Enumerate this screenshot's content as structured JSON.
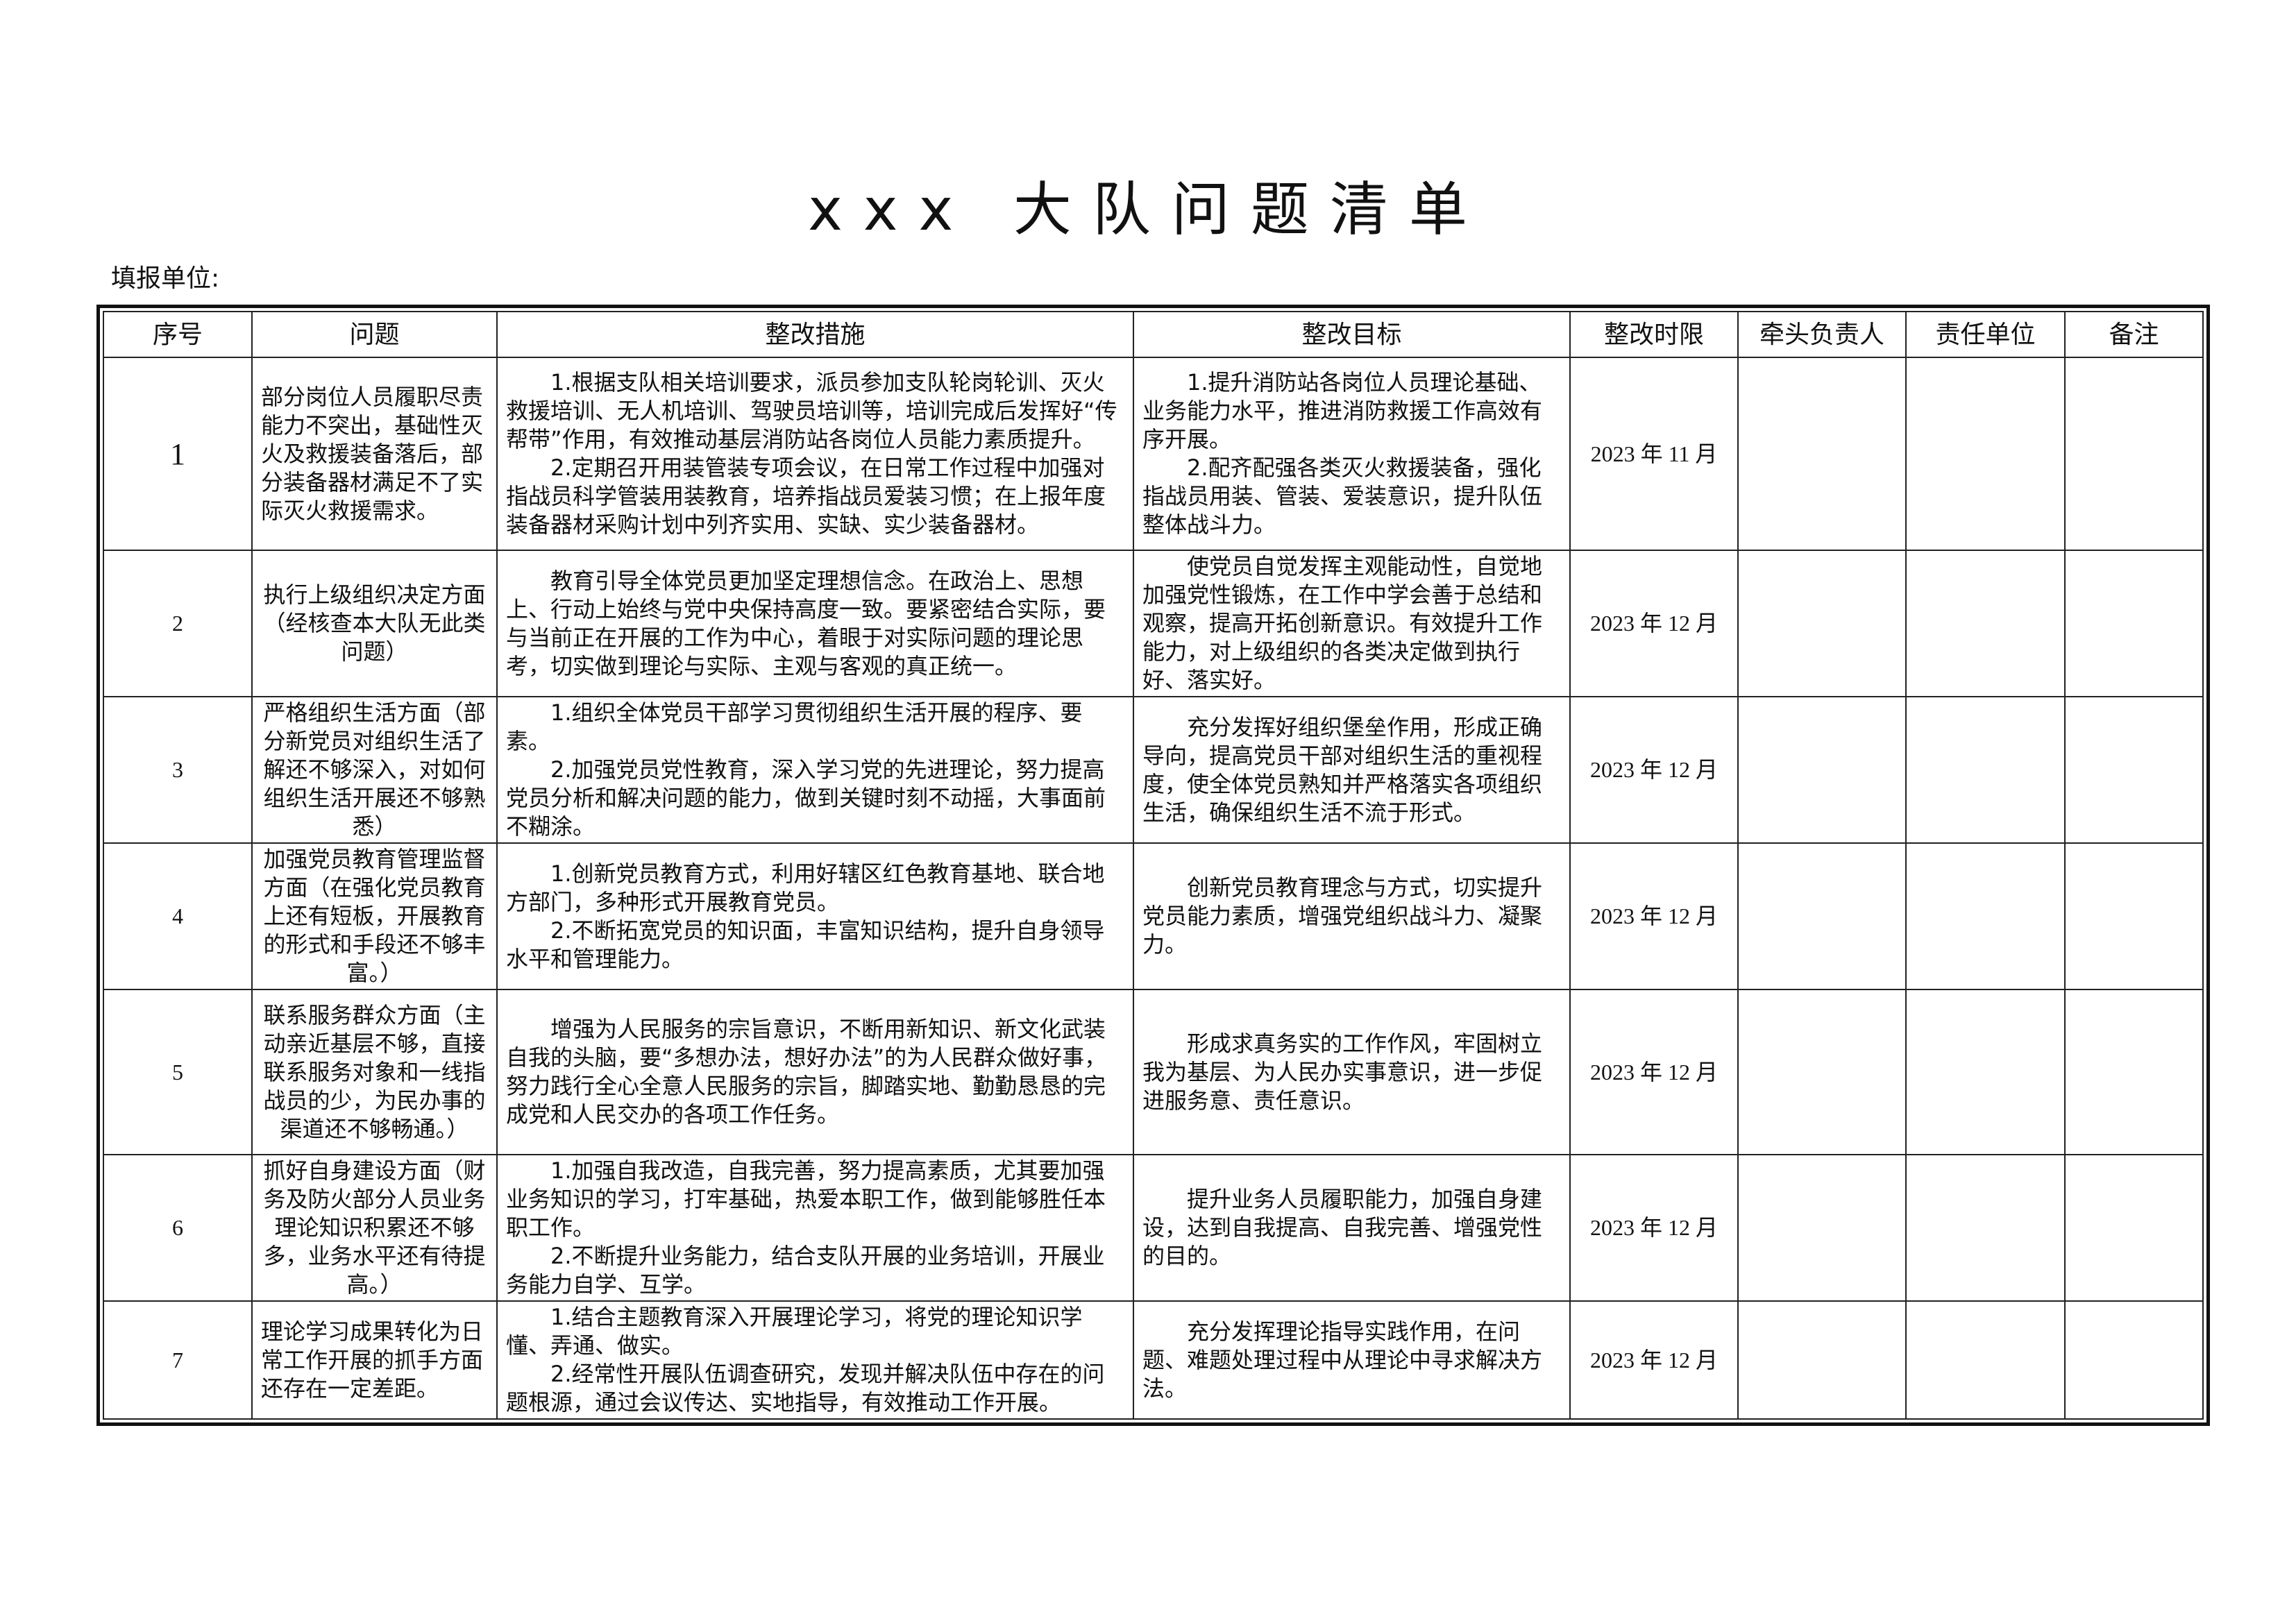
{
  "header": {
    "title": "xxx 大队问题清单",
    "fill_unit": "填报单位:"
  },
  "table": {
    "headers": [
      "序号",
      "问题",
      "整改措施",
      "整改目标",
      "整改时限",
      "牵头负责人",
      "责任单位",
      "备注"
    ],
    "rows": [
      [
        "1",
        "部分岗位人员履职尽责能力不突出，基础性灭火及救援装备落后，部分装备器材满足不了实际灭火救援需求。",
        [
          "1.根据支队相关培训要求，派员参加支队轮岗轮训、灭火救援培训、无人机培训、驾驶员培训等，培训完成后发挥好“传帮带”作用，有效推动基层消防站各岗位人员能力素质提升。",
          "2.定期召开用装管装专项会议，在日常工作过程中加强对指战员科学管装用装教育，培养指战员爱装习惯；在上报年度装备器材采购计划中列齐实用、实缺、实少装备器材。"
        ],
        [
          "1.提升消防站各岗位人员理论基础、业务能力水平，推进消防救援工作高效有序开展。",
          "2.配齐配强各类灭火救援装备，强化指战员用装、管装、爱装意识，提升队伍整体战斗力。"
        ],
        "2023 年 11 月"
      ],
      [
        "2",
        "执行上级组织决定方面（经核查本大队无此类问题）",
        [
          "教育引导全体党员更加坚定理想信念。在政治上、思想上、行动上始终与党中央保持高度一致。要紧密结合实际，要与当前正在开展的工作为中心，着眼于对实际问题的理论思考，切实做到理论与实际、主观与客观的真正统一。"
        ],
        [
          "使党员自觉发挥主观能动性，自觉地加强党性锻炼，在工作中学会善于总结和观察，提高开拓创新意识。有效提升工作能力，对上级组织的各类决定做到执行好、落实好。"
        ],
        "2023 年 12 月"
      ],
      [
        "3",
        "严格组织生活方面（部分新党员对组织生活了解还不够深入，对如何组织生活开展还不够熟悉）",
        [
          "1.组织全体党员干部学习贯彻组织生活开展的程序、要素。",
          "2.加强党员党性教育，深入学习党的先进理论，努力提高党员分析和解决问题的能力，做到关键时刻不动摇，大事面前不糊涂。"
        ],
        [
          "充分发挥好组织堡垒作用，形成正确导向，提高党员干部对组织生活的重视程度，使全体党员熟知并严格落实各项组织生活，确保组织生活不流于形式。"
        ],
        "2023 年 12 月"
      ],
      [
        "4",
        "加强党员教育管理监督方面（在强化党员教育上还有短板，开展教育的形式和手段还不够丰富。）",
        [
          "1.创新党员教育方式，利用好辖区红色教育基地、联合地方部门，多种形式开展教育党员。",
          "2.不断拓宽党员的知识面，丰富知识结构，提升自身领导水平和管理能力。"
        ],
        [
          "创新党员教育理念与方式，切实提升党员能力素质，增强党组织战斗力、凝聚力。"
        ],
        "2023 年 12 月"
      ],
      [
        "5",
        "联系服务群众方面（主动亲近基层不够，直接联系服务对象和一线指战员的少，为民办事的渠道还不够畅通。）",
        [
          "增强为人民服务的宗旨意识，不断用新知识、新文化武装自我的头脑，要“多想办法，想好办法”的为人民群众做好事，努力践行全心全意人民服务的宗旨，脚踏实地、勤勤恳恳的完成党和人民交办的各项工作任务。"
        ],
        [
          "形成求真务实的工作作风，牢固树立我为基层、为人民办实事意识，进一步促进服务意、责任意识。"
        ],
        "2023 年 12 月"
      ],
      [
        "6",
        "抓好自身建设方面（财务及防火部分人员业务理论知识积累还不够多，业务水平还有待提高。）",
        [
          "1.加强自我改造，自我完善，努力提高素质，尤其要加强业务知识的学习，打牢基础，热爱本职工作，做到能够胜任本职工作。",
          "2.不断提升业务能力，结合支队开展的业务培训，开展业务能力自学、互学。"
        ],
        [
          "提升业务人员履职能力，加强自身建设，达到自我提高、自我完善、增强党性的目的。"
        ],
        "2023 年 12 月"
      ],
      [
        "7",
        "理论学习成果转化为日常工作开展的抓手方面还存在一定差距。",
        [
          "1.结合主题教育深入开展理论学习，将党的理论知识学懂、弄通、做实。",
          "2.经常性开展队伍调查研究，发现并解决队伍中存在的问题根源，通过会议传达、实地指导，有效推动工作开展。"
        ],
        [
          "充分发挥理论指导实践作用，在问题、难题处理过程中从理论中寻求解决方法。"
        ],
        "2023 年 12 月"
      ]
    ]
  }
}
